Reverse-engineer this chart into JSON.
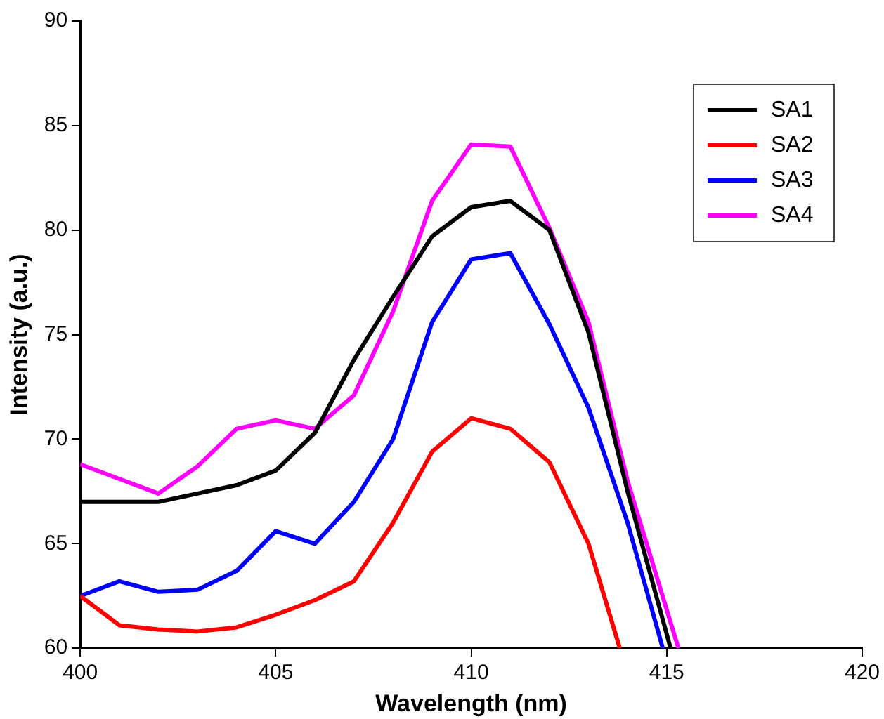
{
  "chart_data": {
    "type": "line",
    "xlabel": "Wavelength (nm)",
    "ylabel": "Intensity (a.u.)",
    "xlim": [
      400,
      420
    ],
    "xticks": [
      400,
      405,
      410,
      415,
      420
    ],
    "ylim": [
      60,
      90
    ],
    "yticks": [
      60,
      65,
      70,
      75,
      80,
      85,
      90
    ],
    "grid": false,
    "legend": "top right",
    "marker": "none",
    "line_style": "solid",
    "series": [
      {
        "name": "SA1",
        "color": "#000000",
        "x": [
          400,
          401,
          402,
          403,
          404,
          405,
          406,
          407,
          408,
          409,
          410,
          411,
          412,
          413,
          414,
          415.1
        ],
        "values": [
          67.0,
          67.0,
          67.0,
          67.4,
          67.8,
          68.5,
          70.3,
          73.8,
          76.8,
          79.7,
          81.1,
          81.4,
          80.0,
          75.1,
          67.5,
          60
        ]
      },
      {
        "name": "SA2",
        "color": "#ff0000",
        "x": [
          400,
          401,
          402,
          403,
          404,
          405,
          406,
          407,
          408,
          409,
          410,
          411,
          412,
          413,
          413.8
        ],
        "values": [
          62.5,
          61.1,
          60.9,
          60.8,
          61.0,
          61.6,
          62.3,
          63.2,
          66.0,
          69.4,
          71.0,
          70.5,
          68.9,
          65.0,
          60
        ]
      },
      {
        "name": "SA3",
        "color": "#0000ff",
        "x": [
          400,
          401,
          402,
          403,
          404,
          405,
          406,
          407,
          408,
          409,
          410,
          411,
          412,
          413,
          414,
          414.9
        ],
        "values": [
          62.5,
          63.2,
          62.7,
          62.8,
          63.7,
          65.6,
          65.0,
          67.0,
          70.0,
          75.6,
          78.6,
          78.9,
          75.5,
          71.5,
          66.0,
          60
        ]
      },
      {
        "name": "SA4",
        "color": "#ff00ff",
        "x": [
          400,
          401,
          402,
          403,
          404,
          405,
          406,
          407,
          408,
          409,
          410,
          411,
          412,
          413,
          414,
          415.3
        ],
        "values": [
          68.8,
          68.1,
          67.4,
          68.7,
          70.5,
          70.9,
          70.5,
          72.1,
          76.1,
          81.4,
          84.1,
          84.0,
          80.1,
          75.6,
          68.0,
          60
        ]
      }
    ]
  }
}
